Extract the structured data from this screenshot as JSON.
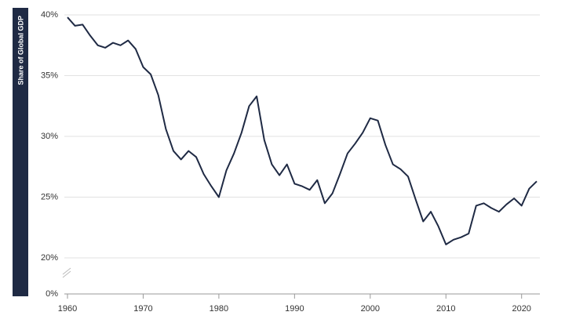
{
  "chart_data": {
    "type": "line",
    "y_label": "Share of Global GDP",
    "x": [
      1960,
      1961,
      1962,
      1963,
      1964,
      1965,
      1966,
      1967,
      1968,
      1969,
      1970,
      1971,
      1972,
      1973,
      1974,
      1975,
      1976,
      1977,
      1978,
      1979,
      1980,
      1981,
      1982,
      1983,
      1984,
      1985,
      1986,
      1987,
      1988,
      1989,
      1990,
      1991,
      1992,
      1993,
      1994,
      1995,
      1996,
      1997,
      1998,
      1999,
      2000,
      2001,
      2002,
      2003,
      2004,
      2005,
      2006,
      2007,
      2008,
      2009,
      2010,
      2011,
      2012,
      2013,
      2014,
      2015,
      2016,
      2017,
      2018,
      2019,
      2020,
      2021,
      2022
    ],
    "series": [
      {
        "color": "#1f2a44",
        "values": [
          39.8,
          39.1,
          39.2,
          38.3,
          37.5,
          37.3,
          37.7,
          37.5,
          37.9,
          37.2,
          35.7,
          35.1,
          33.4,
          30.6,
          28.8,
          28.1,
          28.8,
          28.3,
          26.9,
          25.9,
          25.0,
          27.2,
          28.6,
          30.3,
          32.5,
          33.3,
          29.7,
          27.7,
          26.8,
          27.7,
          26.1,
          25.9,
          25.6,
          26.4,
          24.5,
          25.3,
          26.9,
          28.6,
          29.4,
          30.3,
          31.5,
          31.3,
          29.3,
          27.7,
          27.3,
          26.7,
          24.8,
          23.0,
          23.8,
          22.6,
          21.1,
          21.5,
          21.7,
          22.0,
          24.3,
          24.5,
          24.1,
          23.8,
          24.4,
          24.9,
          24.3,
          25.7,
          26.3
        ]
      }
    ],
    "xlim": [
      1960,
      2022
    ],
    "xticks": [
      1960,
      1970,
      1980,
      1990,
      2000,
      2010,
      2020
    ],
    "ylim": [
      0,
      40
    ],
    "axis_break": [
      0,
      20
    ],
    "yticks": [
      {
        "value": 0,
        "label": "0%"
      },
      {
        "value": 20,
        "label": "20%"
      },
      {
        "value": 25,
        "label": "25%"
      },
      {
        "value": 30,
        "label": "30%"
      },
      {
        "value": 35,
        "label": "35%"
      },
      {
        "value": 40,
        "label": "40%"
      }
    ],
    "grid": true
  }
}
